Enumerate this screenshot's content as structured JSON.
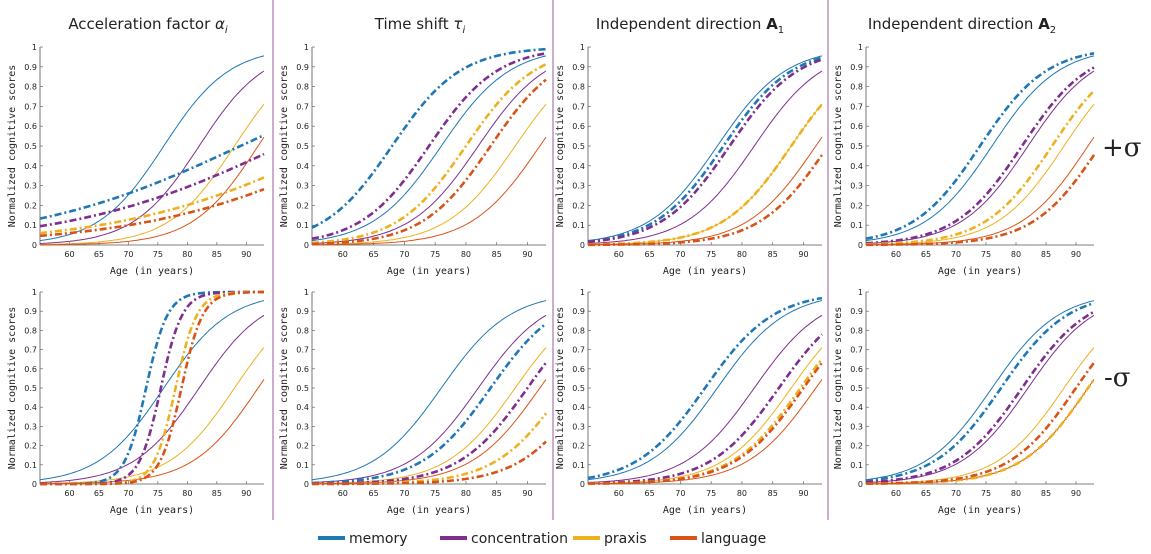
{
  "columns": [
    {
      "title": "Acceleration factor",
      "sym": "α",
      "sub": "i"
    },
    {
      "title": "Time shift",
      "sym": "τ",
      "sub": "i"
    },
    {
      "title": "Independent direction",
      "sym": "A",
      "sub": "1"
    },
    {
      "title": "Independent direction",
      "sym": "A",
      "sub": "2"
    }
  ],
  "rows": [
    {
      "label": "+σ"
    },
    {
      "label": "-σ"
    }
  ],
  "legend": [
    {
      "key": "memory",
      "label": "memory",
      "color": "#1f77b4"
    },
    {
      "key": "concentration",
      "label": "concentration",
      "color": "#7e2f8e"
    },
    {
      "key": "praxis",
      "label": "praxis",
      "color": "#edb120"
    },
    {
      "key": "language",
      "label": "language",
      "color": "#d95319"
    }
  ],
  "chart_data": [
    {
      "type": "line",
      "row": 0,
      "col": 0,
      "panel": "acceleration-plus",
      "xlabel": "Age (in years)",
      "ylabel": "Normalized cognitive scores",
      "xlim": [
        55,
        93
      ],
      "ylim": [
        0,
        1
      ],
      "xticks": [
        60,
        65,
        70,
        75,
        80,
        85,
        90
      ],
      "yticks": [
        0,
        0.1,
        0.2,
        0.3,
        0.4,
        0.5,
        0.6,
        0.7,
        0.8,
        0.9,
        1
      ],
      "yticklabels": [
        "0",
        "0.1",
        "0.2",
        "0.3",
        "0.4",
        "0.5",
        "0.6",
        "0.7",
        "0.8",
        "0.9",
        "1"
      ],
      "reference_curves": {
        "memory": {
          "t0": 76,
          "k": 0.18
        },
        "concentration": {
          "t0": 82,
          "k": 0.18
        },
        "praxis": {
          "t0": 88,
          "k": 0.18
        },
        "language": {
          "t0": 92,
          "k": 0.18
        }
      },
      "series": [
        {
          "key": "memory",
          "t0": 89,
          "k": 0.055
        },
        {
          "key": "concentration",
          "t0": 96,
          "k": 0.055
        },
        {
          "key": "praxis",
          "t0": 105,
          "k": 0.055
        },
        {
          "key": "language",
          "t0": 110,
          "k": 0.055
        }
      ]
    },
    {
      "type": "line",
      "row": 0,
      "col": 1,
      "panel": "timeshift-plus",
      "xlabel": "Age (in years)",
      "ylabel": "Normalized cognitive scores",
      "xlim": [
        55,
        93
      ],
      "ylim": [
        0,
        1
      ],
      "xticks": [
        60,
        65,
        70,
        75,
        80,
        85,
        90
      ],
      "yticks": [
        0,
        0.1,
        0.2,
        0.3,
        0.4,
        0.5,
        0.6,
        0.7,
        0.8,
        0.9,
        1
      ],
      "yticklabels": [
        "0",
        "0.1",
        "0.2",
        "0.3",
        "0.4",
        "0.5",
        "0.6",
        "0.7",
        "0.8",
        "0.9",
        "1"
      ],
      "reference_curves": {
        "memory": {
          "t0": 76,
          "k": 0.18
        },
        "concentration": {
          "t0": 82,
          "k": 0.18
        },
        "praxis": {
          "t0": 88,
          "k": 0.18
        },
        "language": {
          "t0": 92,
          "k": 0.18
        }
      },
      "series": [
        {
          "key": "memory",
          "t0": 68,
          "k": 0.18
        },
        {
          "key": "concentration",
          "t0": 74,
          "k": 0.18
        },
        {
          "key": "praxis",
          "t0": 80,
          "k": 0.18
        },
        {
          "key": "language",
          "t0": 84,
          "k": 0.18
        }
      ]
    },
    {
      "type": "line",
      "row": 0,
      "col": 2,
      "panel": "direction1-plus",
      "xlabel": "Age (in years)",
      "ylabel": "Normalized cognitive scores",
      "xlim": [
        55,
        93
      ],
      "ylim": [
        0,
        1
      ],
      "xticks": [
        60,
        65,
        70,
        75,
        80,
        85,
        90
      ],
      "yticks": [
        0,
        0.1,
        0.2,
        0.3,
        0.4,
        0.5,
        0.6,
        0.7,
        0.8,
        0.9,
        1
      ],
      "yticklabels": [
        "0",
        "0.1",
        "0.2",
        "0.3",
        "0.4",
        "0.5",
        "0.6",
        "0.7",
        "0.8",
        "0.9",
        "1"
      ],
      "reference_curves": {
        "memory": {
          "t0": 76,
          "k": 0.18
        },
        "concentration": {
          "t0": 82,
          "k": 0.18
        },
        "praxis": {
          "t0": 88,
          "k": 0.18
        },
        "language": {
          "t0": 92,
          "k": 0.18
        }
      },
      "series": [
        {
          "key": "memory",
          "t0": 77,
          "k": 0.18
        },
        {
          "key": "concentration",
          "t0": 78,
          "k": 0.18
        },
        {
          "key": "praxis",
          "t0": 88,
          "k": 0.18
        },
        {
          "key": "language",
          "t0": 94,
          "k": 0.18
        }
      ]
    },
    {
      "type": "line",
      "row": 0,
      "col": 3,
      "panel": "direction2-plus",
      "xlabel": "Age (in years)",
      "ylabel": "Normalized cognitive scores",
      "xlim": [
        55,
        93
      ],
      "ylim": [
        0,
        1
      ],
      "xticks": [
        60,
        65,
        70,
        75,
        80,
        85,
        90
      ],
      "yticks": [
        0,
        0.1,
        0.2,
        0.3,
        0.4,
        0.5,
        0.6,
        0.7,
        0.8,
        0.9,
        1
      ],
      "yticklabels": [
        "0",
        "0.1",
        "0.2",
        "0.3",
        "0.4",
        "0.5",
        "0.6",
        "0.7",
        "0.8",
        "0.9",
        "1"
      ],
      "reference_curves": {
        "memory": {
          "t0": 76,
          "k": 0.18
        },
        "concentration": {
          "t0": 82,
          "k": 0.18
        },
        "praxis": {
          "t0": 88,
          "k": 0.18
        },
        "language": {
          "t0": 92,
          "k": 0.18
        }
      },
      "series": [
        {
          "key": "memory",
          "t0": 74,
          "k": 0.18
        },
        {
          "key": "concentration",
          "t0": 81,
          "k": 0.18
        },
        {
          "key": "praxis",
          "t0": 86,
          "k": 0.18
        },
        {
          "key": "language",
          "t0": 94,
          "k": 0.18
        }
      ]
    },
    {
      "type": "line",
      "row": 1,
      "col": 0,
      "panel": "acceleration-minus",
      "xlabel": "Age (in years)",
      "ylabel": "Normalized cognitive scores",
      "xlim": [
        55,
        93
      ],
      "ylim": [
        0,
        1
      ],
      "xticks": [
        60,
        65,
        70,
        75,
        80,
        85,
        90
      ],
      "yticks": [
        0,
        0.1,
        0.2,
        0.3,
        0.4,
        0.5,
        0.6,
        0.7,
        0.8,
        0.9,
        1
      ],
      "yticklabels": [
        "0",
        "0.1",
        "0.2",
        "0.3",
        "0.4",
        "0.5",
        "0.6",
        "0.7",
        "0.8",
        "0.9",
        "1"
      ],
      "reference_curves": {
        "memory": {
          "t0": 76,
          "k": 0.18
        },
        "concentration": {
          "t0": 82,
          "k": 0.18
        },
        "praxis": {
          "t0": 88,
          "k": 0.18
        },
        "language": {
          "t0": 92,
          "k": 0.18
        }
      },
      "series": [
        {
          "key": "memory",
          "t0": 73,
          "k": 0.55
        },
        {
          "key": "concentration",
          "t0": 75.5,
          "k": 0.55
        },
        {
          "key": "praxis",
          "t0": 78,
          "k": 0.55
        },
        {
          "key": "language",
          "t0": 79,
          "k": 0.55
        }
      ]
    },
    {
      "type": "line",
      "row": 1,
      "col": 1,
      "panel": "timeshift-minus",
      "xlabel": "Age (in years)",
      "ylabel": "Normalized cognitive scores",
      "xlim": [
        55,
        93
      ],
      "ylim": [
        0,
        1
      ],
      "xticks": [
        60,
        65,
        70,
        75,
        80,
        85,
        90
      ],
      "yticks": [
        0,
        0.1,
        0.2,
        0.3,
        0.4,
        0.5,
        0.6,
        0.7,
        0.8,
        0.9,
        1
      ],
      "yticklabels": [
        "0",
        "0.1",
        "0.2",
        "0.3",
        "0.4",
        "0.5",
        "0.6",
        "0.7",
        "0.8",
        "0.9",
        "1"
      ],
      "reference_curves": {
        "memory": {
          "t0": 76,
          "k": 0.18
        },
        "concentration": {
          "t0": 82,
          "k": 0.18
        },
        "praxis": {
          "t0": 88,
          "k": 0.18
        },
        "language": {
          "t0": 92,
          "k": 0.18
        }
      },
      "series": [
        {
          "key": "memory",
          "t0": 84,
          "k": 0.18
        },
        {
          "key": "concentration",
          "t0": 90,
          "k": 0.18
        },
        {
          "key": "praxis",
          "t0": 96,
          "k": 0.18
        },
        {
          "key": "language",
          "t0": 100,
          "k": 0.18
        }
      ]
    },
    {
      "type": "line",
      "row": 1,
      "col": 2,
      "panel": "direction1-minus",
      "xlabel": "Age (in years)",
      "ylabel": "Normalized cognitive scores",
      "xlim": [
        55,
        93
      ],
      "ylim": [
        0,
        1
      ],
      "xticks": [
        60,
        65,
        70,
        75,
        80,
        85,
        90
      ],
      "yticks": [
        0,
        0.1,
        0.2,
        0.3,
        0.4,
        0.5,
        0.6,
        0.7,
        0.8,
        0.9,
        1
      ],
      "yticklabels": [
        "0",
        "0.1",
        "0.2",
        "0.3",
        "0.4",
        "0.5",
        "0.6",
        "0.7",
        "0.8",
        "0.9",
        "1"
      ],
      "reference_curves": {
        "memory": {
          "t0": 76,
          "k": 0.18
        },
        "concentration": {
          "t0": 82,
          "k": 0.18
        },
        "praxis": {
          "t0": 88,
          "k": 0.18
        },
        "language": {
          "t0": 92,
          "k": 0.18
        }
      },
      "series": [
        {
          "key": "memory",
          "t0": 74,
          "k": 0.18
        },
        {
          "key": "concentration",
          "t0": 86,
          "k": 0.18
        },
        {
          "key": "praxis",
          "t0": 89.5,
          "k": 0.18
        },
        {
          "key": "language",
          "t0": 90,
          "k": 0.18
        }
      ]
    },
    {
      "type": "line",
      "row": 1,
      "col": 3,
      "panel": "direction2-minus",
      "xlabel": "Age (in years)",
      "ylabel": "Normalized cognitive scores",
      "xlim": [
        55,
        93
      ],
      "ylim": [
        0,
        1
      ],
      "xticks": [
        60,
        65,
        70,
        75,
        80,
        85,
        90
      ],
      "yticks": [
        0,
        0.1,
        0.2,
        0.3,
        0.4,
        0.5,
        0.6,
        0.7,
        0.8,
        0.9,
        1
      ],
      "yticklabels": [
        "0",
        "0.1",
        "0.2",
        "0.3",
        "0.4",
        "0.5",
        "0.6",
        "0.7",
        "0.8",
        "0.9",
        "1"
      ],
      "reference_curves": {
        "memory": {
          "t0": 76,
          "k": 0.18
        },
        "concentration": {
          "t0": 82,
          "k": 0.18
        },
        "praxis": {
          "t0": 88,
          "k": 0.18
        },
        "language": {
          "t0": 92,
          "k": 0.18
        }
      },
      "series": [
        {
          "key": "memory",
          "t0": 77.5,
          "k": 0.18
        },
        {
          "key": "concentration",
          "t0": 81,
          "k": 0.18
        },
        {
          "key": "praxis",
          "t0": 92,
          "k": 0.18
        },
        {
          "key": "language",
          "t0": 90,
          "k": 0.18
        }
      ]
    }
  ]
}
